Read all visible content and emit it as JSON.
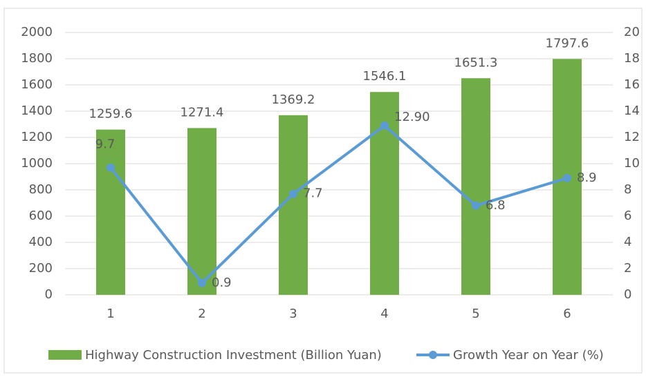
{
  "chart_data": {
    "type": "bar",
    "categories": [
      "1",
      "2",
      "3",
      "4",
      "5",
      "6"
    ],
    "series": [
      {
        "name": "Highway Construction Investment (Billion Yuan)",
        "type": "bar",
        "color": "#70ad47",
        "values": [
          1259.6,
          1271.4,
          1369.2,
          1546.1,
          1651.3,
          1797.6
        ]
      },
      {
        "name": "Growth Year on Year (%)",
        "type": "line",
        "axis": "y2",
        "color": "#5b9bd5",
        "values": [
          9.7,
          0.9,
          7.7,
          12.9,
          6.8,
          8.9
        ],
        "value_labels": [
          "9.7",
          "0.9",
          "7.7",
          "12.90",
          "6.8",
          "8.9"
        ]
      }
    ],
    "ylim": [
      0,
      2000
    ],
    "yticks": [
      0,
      200,
      400,
      600,
      800,
      1000,
      1200,
      1400,
      1600,
      1800,
      2000
    ],
    "y2lim": [
      0,
      20
    ],
    "y2ticks": [
      0,
      2,
      4,
      6,
      8,
      10,
      12,
      14,
      16,
      18,
      20
    ],
    "grid": true,
    "legend": "bottom"
  }
}
